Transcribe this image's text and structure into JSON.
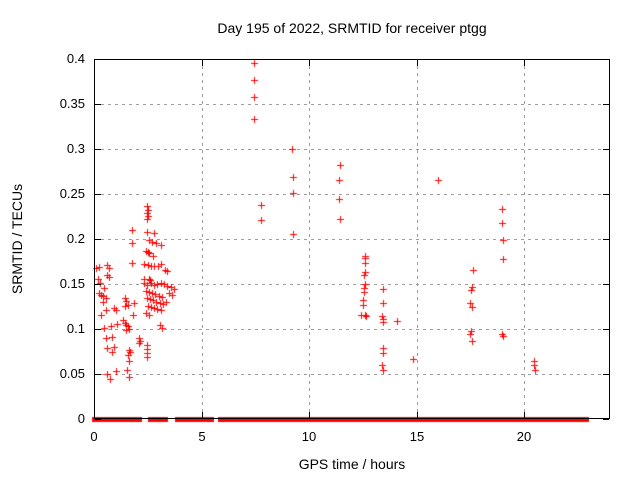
{
  "chart_data": {
    "type": "scatter",
    "title": "Day 195 of 2022, SRMTID for receiver ptgg",
    "xlabel": "GPS time / hours",
    "ylabel": "SRMTID / TECUs",
    "xlim": [
      0,
      24
    ],
    "ylim": [
      0,
      0.4
    ],
    "xticks": [
      0,
      5,
      10,
      15,
      20
    ],
    "xtick_labels": [
      "0",
      "5",
      "10",
      "15",
      "20"
    ],
    "yticks": [
      0,
      0.05,
      0.1,
      0.15,
      0.2,
      0.25,
      0.3,
      0.35,
      0.4
    ],
    "ytick_labels": [
      "0",
      "0.05",
      "0.1",
      "0.15",
      "0.2",
      "0.25",
      "0.3",
      "0.35",
      "0.4"
    ],
    "grid": true,
    "legend": "none",
    "marker": "plus",
    "marker_color": "#ff0000",
    "series": [
      {
        "name": "SRMTID",
        "points": [
          [
            0.1,
            0.168
          ],
          [
            0.24,
            0.169
          ],
          [
            0.62,
            0.171
          ],
          [
            0.7,
            0.168
          ],
          [
            0.62,
            0.16
          ],
          [
            0.7,
            0.158
          ],
          [
            0.18,
            0.156
          ],
          [
            0.28,
            0.151
          ],
          [
            0.47,
            0.146
          ],
          [
            0.25,
            0.14
          ],
          [
            0.31,
            0.138
          ],
          [
            0.44,
            0.137
          ],
          [
            0.54,
            0.134
          ],
          [
            0.4,
            0.13
          ],
          [
            0.93,
            0.123
          ],
          [
            1.0,
            0.121
          ],
          [
            0.54,
            0.121
          ],
          [
            0.31,
            0.116
          ],
          [
            1.08,
            0.106
          ],
          [
            0.78,
            0.103
          ],
          [
            0.47,
            0.101
          ],
          [
            0.85,
            0.091
          ],
          [
            0.54,
            0.09
          ],
          [
            0.93,
            0.08
          ],
          [
            0.62,
            0.079
          ],
          [
            0.85,
            0.075
          ],
          [
            1.0,
            0.053
          ],
          [
            0.6,
            0.05
          ],
          [
            0.74,
            0.044
          ],
          [
            1.76,
            0.21
          ],
          [
            1.77,
            0.196
          ],
          [
            1.78,
            0.173
          ],
          [
            1.44,
            0.135
          ],
          [
            1.51,
            0.131
          ],
          [
            1.58,
            0.127
          ],
          [
            1.44,
            0.126
          ],
          [
            1.86,
            0.129
          ],
          [
            1.81,
            0.116
          ],
          [
            1.35,
            0.11
          ],
          [
            1.42,
            0.107
          ],
          [
            1.49,
            0.104
          ],
          [
            1.56,
            0.103
          ],
          [
            1.63,
            0.1
          ],
          [
            1.47,
            0.099
          ],
          [
            2.09,
            0.09
          ],
          [
            2.12,
            0.087
          ],
          [
            2.07,
            0.084
          ],
          [
            1.63,
            0.077
          ],
          [
            1.66,
            0.074
          ],
          [
            1.6,
            0.071
          ],
          [
            1.63,
            0.064
          ],
          [
            1.55,
            0.054
          ],
          [
            1.63,
            0.047
          ],
          [
            2.47,
            0.237
          ],
          [
            2.49,
            0.232
          ],
          [
            2.47,
            0.229
          ],
          [
            2.5,
            0.226
          ],
          [
            2.48,
            0.222
          ],
          [
            2.47,
            0.208
          ],
          [
            2.79,
            0.207
          ],
          [
            2.56,
            0.199
          ],
          [
            2.71,
            0.197
          ],
          [
            2.87,
            0.195
          ],
          [
            3.1,
            0.193
          ],
          [
            2.44,
            0.187
          ],
          [
            2.51,
            0.186
          ],
          [
            2.58,
            0.184
          ],
          [
            2.76,
            0.181
          ],
          [
            2.33,
            0.172
          ],
          [
            2.49,
            0.171
          ],
          [
            2.65,
            0.17
          ],
          [
            2.81,
            0.17
          ],
          [
            2.98,
            0.17
          ],
          [
            3.12,
            0.172
          ],
          [
            3.29,
            0.166
          ],
          [
            3.41,
            0.164
          ],
          [
            2.33,
            0.156
          ],
          [
            2.56,
            0.156
          ],
          [
            2.62,
            0.154
          ],
          [
            2.33,
            0.151
          ],
          [
            2.48,
            0.149
          ],
          [
            2.64,
            0.151
          ],
          [
            2.79,
            0.149
          ],
          [
            2.95,
            0.15
          ],
          [
            3.1,
            0.151
          ],
          [
            3.26,
            0.15
          ],
          [
            3.41,
            0.148
          ],
          [
            3.57,
            0.147
          ],
          [
            3.72,
            0.145
          ],
          [
            2.4,
            0.142
          ],
          [
            2.55,
            0.141
          ],
          [
            2.7,
            0.14
          ],
          [
            2.85,
            0.139
          ],
          [
            3.0,
            0.137
          ],
          [
            3.15,
            0.136
          ],
          [
            3.5,
            0.14
          ],
          [
            3.65,
            0.138
          ],
          [
            2.45,
            0.134
          ],
          [
            2.6,
            0.133
          ],
          [
            2.75,
            0.132
          ],
          [
            2.9,
            0.13
          ],
          [
            3.05,
            0.129
          ],
          [
            3.2,
            0.128
          ],
          [
            3.35,
            0.13
          ],
          [
            2.5,
            0.126
          ],
          [
            2.65,
            0.125
          ],
          [
            2.8,
            0.123
          ],
          [
            2.95,
            0.122
          ],
          [
            3.1,
            0.121
          ],
          [
            2.42,
            0.118
          ],
          [
            2.58,
            0.116
          ],
          [
            3.06,
            0.104
          ],
          [
            3.18,
            0.101
          ],
          [
            2.48,
            0.082
          ],
          [
            2.48,
            0.078
          ],
          [
            2.45,
            0.073
          ],
          [
            2.48,
            0.069
          ],
          [
            7.44,
            0.396
          ],
          [
            7.44,
            0.377
          ],
          [
            7.44,
            0.358
          ],
          [
            7.44,
            0.333
          ],
          [
            7.77,
            0.238
          ],
          [
            7.77,
            0.221
          ],
          [
            9.22,
            0.3
          ],
          [
            9.25,
            0.269
          ],
          [
            9.25,
            0.251
          ],
          [
            9.27,
            0.206
          ],
          [
            11.44,
            0.282
          ],
          [
            11.4,
            0.266
          ],
          [
            11.4,
            0.244
          ],
          [
            11.44,
            0.222
          ],
          [
            12.6,
            0.181
          ],
          [
            12.62,
            0.179
          ],
          [
            12.6,
            0.173
          ],
          [
            12.6,
            0.163
          ],
          [
            12.58,
            0.16
          ],
          [
            12.6,
            0.15
          ],
          [
            12.55,
            0.146
          ],
          [
            12.58,
            0.141
          ],
          [
            12.53,
            0.132
          ],
          [
            12.49,
            0.127
          ],
          [
            12.44,
            0.116
          ],
          [
            12.6,
            0.116
          ],
          [
            12.63,
            0.114
          ],
          [
            13.44,
            0.145
          ],
          [
            13.42,
            0.129
          ],
          [
            13.4,
            0.114
          ],
          [
            13.44,
            0.111
          ],
          [
            13.42,
            0.108
          ],
          [
            13.44,
            0.079
          ],
          [
            13.44,
            0.073
          ],
          [
            13.38,
            0.06
          ],
          [
            13.42,
            0.055
          ],
          [
            14.08,
            0.109
          ],
          [
            14.82,
            0.067
          ],
          [
            16.01,
            0.266
          ],
          [
            17.64,
            0.166
          ],
          [
            17.57,
            0.147
          ],
          [
            17.53,
            0.143
          ],
          [
            17.49,
            0.129
          ],
          [
            17.6,
            0.124
          ],
          [
            17.55,
            0.098
          ],
          [
            17.51,
            0.095
          ],
          [
            17.57,
            0.087
          ],
          [
            18.96,
            0.233
          ],
          [
            18.96,
            0.218
          ],
          [
            19.01,
            0.199
          ],
          [
            19.04,
            0.178
          ],
          [
            18.99,
            0.094
          ],
          [
            19.03,
            0.092
          ],
          [
            20.48,
            0.065
          ],
          [
            20.48,
            0.06
          ],
          [
            20.51,
            0.055
          ]
        ]
      }
    ],
    "baseline_value": 0,
    "baseline_segments": [
      [
        0.05,
        0.55
      ],
      [
        0.65,
        0.8
      ],
      [
        0.9,
        1.0
      ],
      [
        1.05,
        1.6
      ],
      [
        1.7,
        2.1
      ],
      [
        2.65,
        2.8
      ],
      [
        2.95,
        3.3
      ],
      [
        3.9,
        4.9
      ],
      [
        5.0,
        5.45
      ],
      [
        5.9,
        7.1
      ],
      [
        7.2,
        9.15
      ],
      [
        9.25,
        9.95
      ],
      [
        10.1,
        10.45
      ],
      [
        10.55,
        11.1
      ],
      [
        11.2,
        11.4
      ],
      [
        11.5,
        11.6
      ],
      [
        11.7,
        11.85
      ],
      [
        11.95,
        12.3
      ],
      [
        12.4,
        13.35
      ],
      [
        13.45,
        13.85
      ],
      [
        13.95,
        14.25
      ],
      [
        14.35,
        15.35
      ],
      [
        15.45,
        16.3
      ],
      [
        16.45,
        16.65
      ],
      [
        16.8,
        17.0
      ],
      [
        17.15,
        18.85
      ],
      [
        18.95,
        19.4
      ],
      [
        19.5,
        20.9
      ],
      [
        21.1,
        21.6
      ],
      [
        21.75,
        22.9
      ]
    ]
  }
}
